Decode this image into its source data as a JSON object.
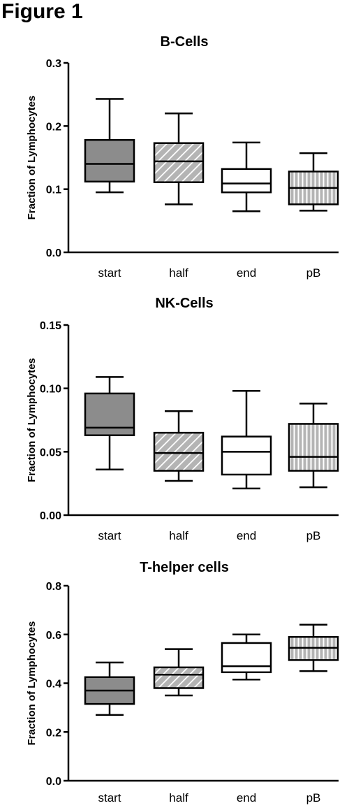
{
  "figure": {
    "title": "Figure 1"
  },
  "colors": {
    "start": "#8c8c8c",
    "half": "#b4b4b4",
    "end": "#ffffff",
    "pB": "#b4b4b4",
    "stroke": "#000000"
  },
  "chart_data": [
    {
      "type": "boxplot",
      "title": "B-Cells",
      "ylabel": "Fraction of Lymphocytes",
      "xlabel": "",
      "ylim": [
        0,
        0.3
      ],
      "yticks": [
        "0.0",
        "0.1",
        "0.2",
        "0.3"
      ],
      "ytick_values": [
        0,
        0.1,
        0.2,
        0.3
      ],
      "categories": [
        "start",
        "half",
        "end",
        "pB"
      ],
      "fills": [
        "solid",
        "diagonal-hatch",
        "none",
        "vertical-hatch"
      ],
      "boxes": [
        {
          "min": 0.095,
          "q1": 0.112,
          "median": 0.14,
          "q3": 0.178,
          "max": 0.243
        },
        {
          "min": 0.076,
          "q1": 0.111,
          "median": 0.144,
          "q3": 0.173,
          "max": 0.22
        },
        {
          "min": 0.065,
          "q1": 0.095,
          "median": 0.109,
          "q3": 0.132,
          "max": 0.174
        },
        {
          "min": 0.066,
          "q1": 0.076,
          "median": 0.102,
          "q3": 0.128,
          "max": 0.157
        }
      ]
    },
    {
      "type": "boxplot",
      "title": "NK-Cells",
      "ylabel": "Fraction of Lymphocytes",
      "xlabel": "",
      "ylim": [
        0,
        0.15
      ],
      "yticks": [
        "0.00",
        "0.05",
        "0.10",
        "0.15"
      ],
      "ytick_values": [
        0,
        0.05,
        0.1,
        0.15
      ],
      "categories": [
        "start",
        "half",
        "end",
        "pB"
      ],
      "fills": [
        "solid",
        "diagonal-hatch",
        "none",
        "vertical-hatch"
      ],
      "boxes": [
        {
          "min": 0.036,
          "q1": 0.063,
          "median": 0.069,
          "q3": 0.096,
          "max": 0.109
        },
        {
          "min": 0.027,
          "q1": 0.035,
          "median": 0.049,
          "q3": 0.065,
          "max": 0.082
        },
        {
          "min": 0.021,
          "q1": 0.032,
          "median": 0.05,
          "q3": 0.062,
          "max": 0.098
        },
        {
          "min": 0.022,
          "q1": 0.035,
          "median": 0.046,
          "q3": 0.072,
          "max": 0.088
        }
      ]
    },
    {
      "type": "boxplot",
      "title": "T-helper cells",
      "ylabel": "Fraction of Lymphocytes",
      "xlabel": "",
      "ylim": [
        0,
        0.8
      ],
      "yticks": [
        "0.0",
        "0.2",
        "0.4",
        "0.6",
        "0.8"
      ],
      "ytick_values": [
        0,
        0.2,
        0.4,
        0.6,
        0.8
      ],
      "categories": [
        "start",
        "half",
        "end",
        "pB"
      ],
      "fills": [
        "solid",
        "diagonal-hatch",
        "none",
        "vertical-hatch"
      ],
      "boxes": [
        {
          "min": 0.27,
          "q1": 0.315,
          "median": 0.37,
          "q3": 0.425,
          "max": 0.485
        },
        {
          "min": 0.35,
          "q1": 0.38,
          "median": 0.435,
          "q3": 0.465,
          "max": 0.54
        },
        {
          "min": 0.415,
          "q1": 0.445,
          "median": 0.47,
          "q3": 0.565,
          "max": 0.6
        },
        {
          "min": 0.45,
          "q1": 0.495,
          "median": 0.545,
          "q3": 0.59,
          "max": 0.64
        }
      ]
    }
  ]
}
